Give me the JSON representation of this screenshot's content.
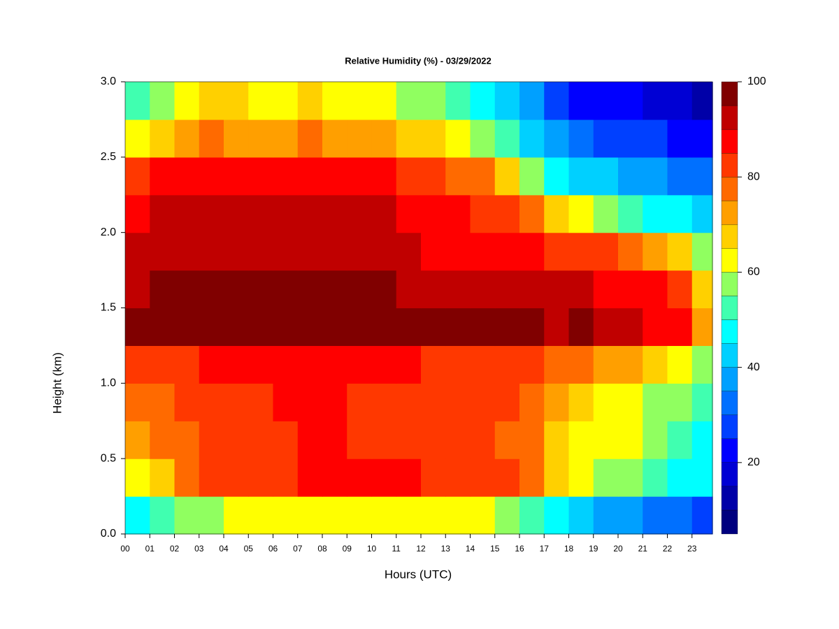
{
  "chart_data": {
    "type": "heatmap",
    "title": "Relative Humidity (%) - 03/29/2022",
    "x_label": "Hours (UTC)",
    "y_label": "Height (km)",
    "x": [
      0,
      1,
      2,
      3,
      4,
      5,
      6,
      7,
      8,
      9,
      10,
      11,
      12,
      13,
      14,
      15,
      16,
      17,
      18,
      19,
      20,
      21,
      22,
      23
    ],
    "y": [
      0,
      0.25,
      0.5,
      0.75,
      1.0,
      1.25,
      1.5,
      1.75,
      2.0,
      2.25,
      2.5,
      2.75
    ],
    "xlim": [
      0,
      23.83
    ],
    "ylim": [
      0,
      3
    ],
    "xticks": [
      {
        "value": 0,
        "label": "00"
      },
      {
        "value": 1,
        "label": "01"
      },
      {
        "value": 2,
        "label": "02"
      },
      {
        "value": 3,
        "label": "03"
      },
      {
        "value": 4,
        "label": "04"
      },
      {
        "value": 5,
        "label": "05"
      },
      {
        "value": 6,
        "label": "06"
      },
      {
        "value": 7,
        "label": "07"
      },
      {
        "value": 8,
        "label": "08"
      },
      {
        "value": 9,
        "label": "09"
      },
      10,
      11,
      12,
      13,
      14,
      15,
      16,
      17,
      18,
      19,
      20,
      21,
      22,
      23
    ],
    "yticks": [
      {
        "value": 0,
        "label": "0.0"
      },
      {
        "value": 0.5,
        "label": "0.5"
      },
      {
        "value": 1,
        "label": "1.0"
      },
      {
        "value": 1.5,
        "label": "1.5"
      },
      {
        "value": 2,
        "label": "2.0"
      },
      {
        "value": 2.5,
        "label": "2.5"
      },
      {
        "value": 3,
        "label": "3.0"
      }
    ],
    "z": [
      [
        45,
        50,
        55,
        58,
        60,
        62,
        62,
        63,
        63,
        62,
        62,
        62,
        62,
        60,
        60,
        58,
        52,
        45,
        40,
        38,
        35,
        32,
        30,
        28
      ],
      [
        62,
        68,
        75,
        80,
        82,
        83,
        84,
        86,
        88,
        86,
        86,
        85,
        84,
        84,
        84,
        82,
        78,
        65,
        60,
        58,
        55,
        50,
        48,
        45
      ],
      [
        72,
        75,
        78,
        80,
        80,
        82,
        83,
        85,
        85,
        84,
        83,
        83,
        82,
        82,
        80,
        78,
        75,
        65,
        62,
        62,
        60,
        55,
        52,
        48
      ],
      [
        76,
        78,
        80,
        82,
        82,
        82,
        85,
        86,
        85,
        84,
        84,
        83,
        82,
        82,
        82,
        80,
        78,
        70,
        65,
        63,
        62,
        58,
        55,
        50
      ],
      [
        82,
        83,
        84,
        85,
        85,
        85,
        86,
        87,
        86,
        85,
        85,
        85,
        84,
        84,
        84,
        83,
        82,
        78,
        75,
        72,
        70,
        68,
        62,
        55
      ],
      [
        95,
        96,
        96,
        97,
        97,
        97,
        97,
        97,
        97,
        97,
        97,
        96,
        95,
        95,
        95,
        95,
        95,
        94,
        95,
        90,
        90,
        88,
        85,
        70
      ],
      [
        94,
        95,
        95,
        96,
        96,
        96,
        96,
        96,
        95,
        95,
        95,
        94,
        93,
        93,
        92,
        92,
        92,
        90,
        90,
        87,
        87,
        85,
        80,
        65
      ],
      [
        90,
        92,
        93,
        94,
        94,
        93,
        93,
        94,
        93,
        92,
        92,
        90,
        88,
        88,
        88,
        87,
        86,
        84,
        82,
        80,
        78,
        72,
        65,
        55
      ],
      [
        88,
        90,
        92,
        94,
        93,
        92,
        92,
        94,
        92,
        92,
        91,
        88,
        86,
        85,
        84,
        82,
        75,
        65,
        60,
        55,
        52,
        48,
        45,
        42
      ],
      [
        80,
        85,
        86,
        88,
        87,
        86,
        86,
        88,
        86,
        85,
        85,
        82,
        80,
        78,
        75,
        65,
        55,
        45,
        42,
        40,
        38,
        36,
        34,
        32
      ],
      [
        60,
        65,
        70,
        75,
        74,
        72,
        72,
        75,
        72,
        72,
        70,
        68,
        65,
        62,
        58,
        50,
        42,
        35,
        30,
        28,
        26,
        25,
        22,
        20
      ],
      [
        50,
        55,
        60,
        65,
        65,
        62,
        62,
        65,
        62,
        62,
        60,
        58,
        55,
        52,
        48,
        42,
        35,
        25,
        22,
        20,
        20,
        18,
        16,
        12
      ]
    ],
    "levels": [
      5,
      10,
      15,
      20,
      25,
      30,
      35,
      40,
      45,
      50,
      55,
      60,
      65,
      70,
      75,
      80,
      85,
      90,
      95,
      100
    ],
    "colors": [
      "#00007f",
      "#0000a8",
      "#0000d4",
      "#0000ff",
      "#0040ff",
      "#0070ff",
      "#00a0ff",
      "#00d0ff",
      "#00ffff",
      "#40ffb0",
      "#90ff60",
      "#ffff00",
      "#ffd000",
      "#ff9f00",
      "#ff6a00",
      "#ff3800",
      "#ff0000",
      "#c00000",
      "#800000"
    ],
    "colorbar_ticks": [
      20,
      40,
      60,
      80,
      100
    ]
  }
}
